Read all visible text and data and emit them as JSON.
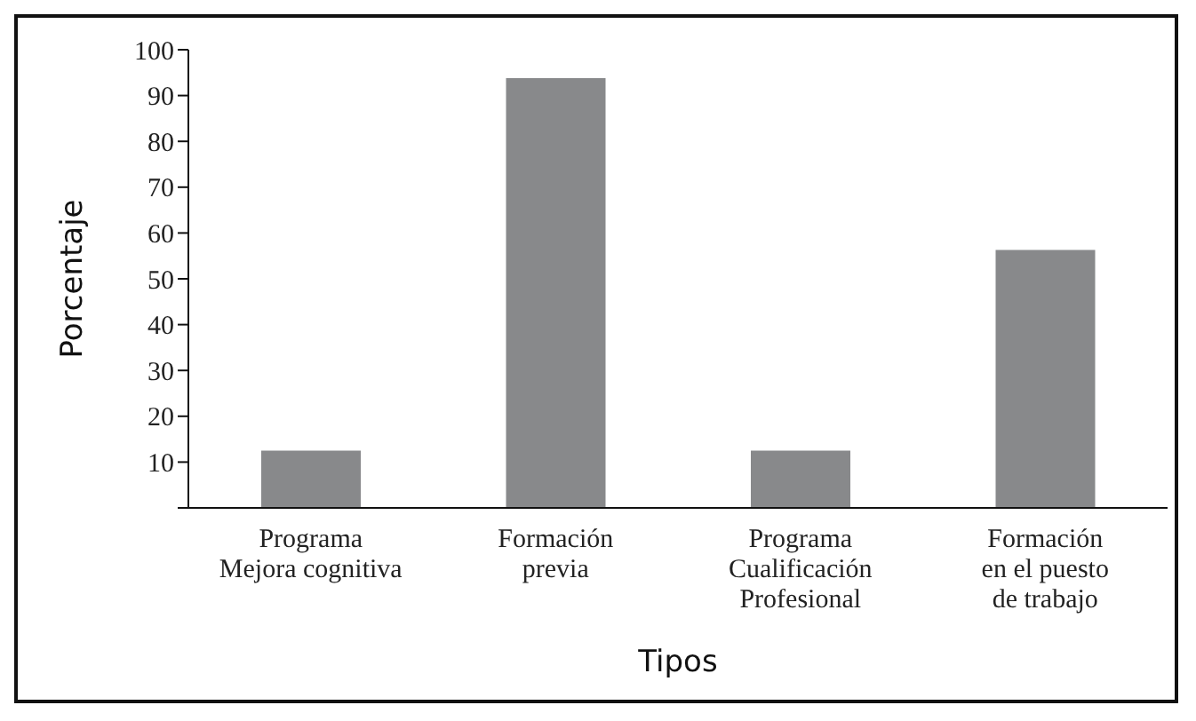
{
  "chart_data": {
    "type": "bar",
    "xlabel": "Tipos",
    "ylabel": "Porcentaje",
    "categories": [
      "Programa\nMejora cognitiva",
      "Formación\nprevia",
      "Programa\nCualificación\nProfesional",
      "Formación\nen el puesto\nde trabajo"
    ],
    "values": [
      12.5,
      93.8,
      12.5,
      56.3
    ],
    "color": "#88898b",
    "ylim": [
      0,
      100
    ],
    "yticks": [
      {
        "value": 0,
        "label": null
      },
      10,
      20,
      30,
      40,
      50,
      60,
      70,
      80,
      90,
      100
    ],
    "grid": false,
    "legend": false
  }
}
